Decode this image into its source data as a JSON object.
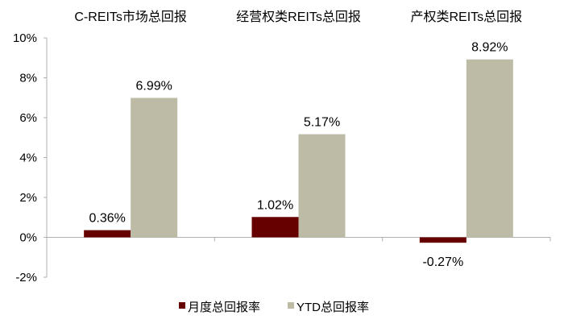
{
  "chart_data": {
    "type": "bar",
    "categories": [
      "C-REITs市场总回报",
      "经营权类REITs总回报",
      "产权类REITs总回报"
    ],
    "series": [
      {
        "name": "月度总回报率",
        "values": [
          0.36,
          1.02,
          -0.27
        ],
        "labels": [
          "0.36%",
          "1.02%",
          "-0.27%"
        ],
        "color": "#660000"
      },
      {
        "name": "YTD总回报率",
        "values": [
          6.99,
          5.17,
          8.92
        ],
        "labels": [
          "6.99%",
          "5.17%",
          "8.92%"
        ],
        "color": "#BDBBA6"
      }
    ],
    "ylim": [
      -2,
      10
    ],
    "yticks": [
      -2,
      0,
      2,
      4,
      6,
      8,
      10
    ],
    "ytick_labels": [
      "-2%",
      "0%",
      "2%",
      "4%",
      "6%",
      "8%",
      "10%"
    ],
    "grid": false,
    "legend_placement": "bottom",
    "category_label_placement": "top"
  }
}
